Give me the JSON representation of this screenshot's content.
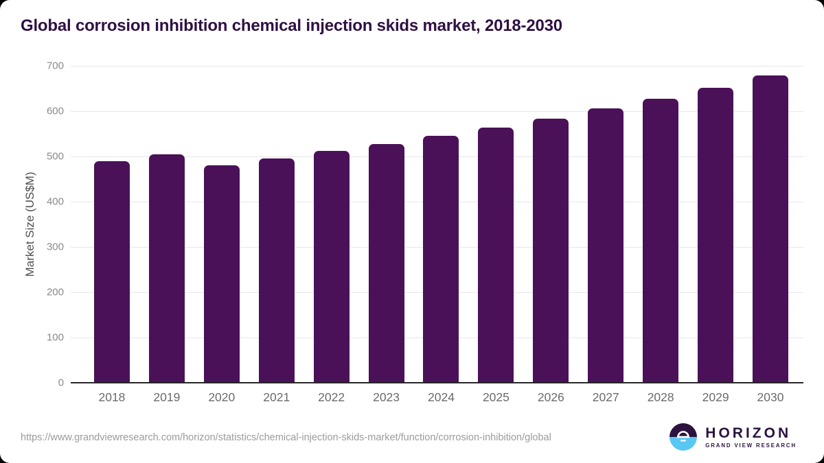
{
  "chart_data": {
    "type": "bar",
    "title": "Global corrosion inhibition chemical injection skids market, 2018-2030",
    "xlabel": "",
    "ylabel": "Market Size (US$M)",
    "categories": [
      "2018",
      "2019",
      "2020",
      "2021",
      "2022",
      "2023",
      "2024",
      "2025",
      "2026",
      "2027",
      "2028",
      "2029",
      "2030"
    ],
    "values": [
      490,
      505,
      481,
      495,
      512,
      528,
      545,
      563,
      584,
      606,
      628,
      652,
      679
    ],
    "ylim": [
      0,
      700
    ],
    "yticks": [
      0,
      100,
      200,
      300,
      400,
      500,
      600,
      700
    ],
    "grid": "horizontal-only",
    "legend": "none",
    "bar_color": "#4a1158"
  },
  "colors": {
    "bar": "#4a1158",
    "title_text": "#2f1043",
    "axis_text": "#6b6b6b",
    "gridline": "#e7e7e7",
    "logo_purple": "#2b123f",
    "logo_blue": "#58c8f3"
  },
  "footer": {
    "url": "https://www.grandviewresearch.com/horizon/statistics/chemical-injection-skids-market/function/corrosion-inhibition/global",
    "logo": {
      "name": "HORIZON",
      "subtitle": "GRAND VIEW RESEARCH"
    }
  }
}
